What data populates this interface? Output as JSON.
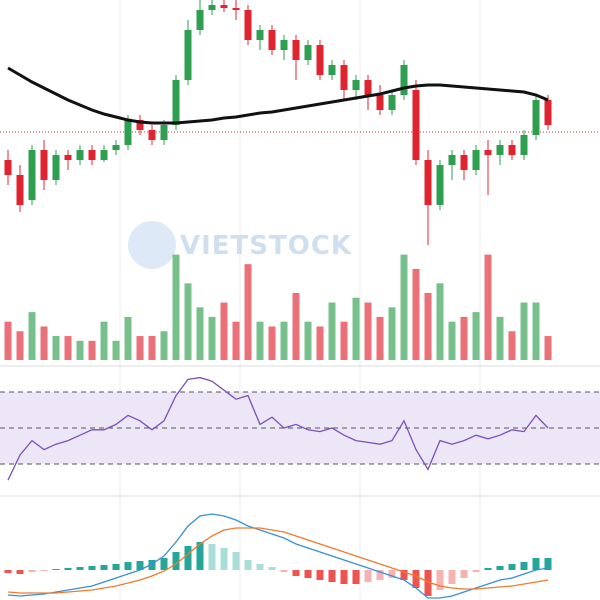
{
  "watermark": "VIETSTOCK",
  "chart_data": [
    {
      "type": "candlestick",
      "up_color": "#2e9e4f",
      "down_color": "#e0242f",
      "ylim": [
        -20,
        230
      ],
      "reference": 98,
      "open": [
        70,
        55,
        30,
        80,
        50,
        75,
        70,
        80,
        70,
        80,
        85,
        110,
        100,
        90,
        105,
        150,
        200,
        220,
        225,
        222,
        220,
        190,
        200,
        180,
        190,
        170,
        185,
        155,
        165,
        140,
        150,
        135,
        120,
        135,
        140,
        70,
        25,
        65,
        75,
        60,
        80,
        75,
        85,
        75,
        95,
        130
      ],
      "close": [
        55,
        25,
        80,
        50,
        75,
        70,
        80,
        70,
        80,
        85,
        110,
        100,
        90,
        105,
        150,
        200,
        220,
        225,
        222,
        220,
        190,
        200,
        180,
        190,
        170,
        185,
        155,
        165,
        140,
        150,
        135,
        120,
        135,
        165,
        70,
        25,
        65,
        75,
        60,
        80,
        75,
        85,
        75,
        95,
        130,
        105
      ],
      "high": [
        80,
        65,
        85,
        90,
        80,
        80,
        85,
        85,
        85,
        90,
        115,
        115,
        105,
        110,
        155,
        210,
        230,
        230,
        230,
        230,
        225,
        205,
        205,
        195,
        195,
        190,
        190,
        170,
        170,
        155,
        155,
        145,
        140,
        170,
        150,
        80,
        70,
        80,
        80,
        85,
        90,
        90,
        90,
        100,
        135,
        135
      ],
      "low": [
        45,
        18,
        25,
        40,
        45,
        60,
        65,
        65,
        68,
        75,
        80,
        95,
        85,
        85,
        100,
        145,
        195,
        215,
        218,
        210,
        185,
        180,
        175,
        170,
        150,
        165,
        150,
        150,
        130,
        130,
        120,
        115,
        115,
        130,
        65,
        -15,
        20,
        50,
        50,
        55,
        35,
        65,
        70,
        70,
        90,
        100
      ],
      "ma": {
        "color": "#111111",
        "values": [
          162,
          155,
          148,
          142,
          136,
          130,
          125,
          120,
          116,
          113,
          110,
          108,
          107,
          107,
          107,
          108,
          109,
          110,
          112,
          113,
          115,
          117,
          118,
          120,
          122,
          124,
          126,
          128,
          130,
          132,
          134,
          136,
          139,
          142,
          144,
          145,
          145,
          144,
          143,
          142,
          141,
          140,
          139,
          138,
          135,
          130
        ]
      }
    },
    {
      "type": "bar",
      "ylim": [
        0,
        120
      ],
      "values": [
        40,
        30,
        50,
        35,
        25,
        25,
        20,
        20,
        40,
        20,
        45,
        25,
        25,
        30,
        110,
        80,
        55,
        45,
        60,
        40,
        100,
        40,
        35,
        40,
        70,
        40,
        35,
        60,
        40,
        65,
        60,
        45,
        55,
        110,
        95,
        70,
        80,
        40,
        45,
        50,
        110,
        45,
        30,
        60,
        60,
        25
      ]
    },
    {
      "type": "line",
      "color": "#7b52b9",
      "band_color": "#ece6f7",
      "ylim": [
        10,
        80
      ],
      "levels": [
        30,
        50,
        70
      ],
      "values": [
        21,
        35,
        43,
        38,
        41,
        43,
        46,
        49,
        49,
        52,
        57,
        54,
        49,
        54,
        68,
        77,
        78,
        76,
        71,
        66,
        68,
        52,
        56,
        50,
        52,
        49,
        48,
        50,
        46,
        43,
        42,
        41,
        43,
        54,
        38,
        27,
        43,
        41,
        43,
        46,
        44,
        46,
        49,
        48,
        57,
        50
      ]
    },
    {
      "type": "macd",
      "ylim": [
        -30,
        70
      ],
      "macd_color": "#3a8fd9",
      "signal_color": "#f07b2c",
      "histogram": [
        -3,
        -4,
        -2,
        -1,
        1,
        2,
        3,
        4,
        5,
        6,
        8,
        9,
        10,
        12,
        18,
        24,
        28,
        26,
        22,
        18,
        10,
        6,
        3,
        -2,
        -6,
        -8,
        -10,
        -12,
        -14,
        -14,
        -12,
        -10,
        -8,
        -10,
        -18,
        -26,
        -20,
        -14,
        -8,
        -2,
        2,
        4,
        6,
        8,
        12,
        12
      ],
      "macd": [
        -25,
        -26,
        -25,
        -24,
        -22,
        -20,
        -18,
        -16,
        -12,
        -8,
        -4,
        0,
        6,
        14,
        28,
        44,
        54,
        56,
        54,
        50,
        44,
        40,
        36,
        32,
        26,
        22,
        18,
        14,
        10,
        6,
        2,
        -2,
        -6,
        -10,
        -18,
        -28,
        -28,
        -26,
        -22,
        -18,
        -14,
        -10,
        -8,
        -4,
        0,
        2
      ],
      "signal": [
        -22,
        -23,
        -23,
        -23,
        -23,
        -22,
        -21,
        -20,
        -18,
        -16,
        -13,
        -10,
        -6,
        -1,
        6,
        16,
        26,
        34,
        40,
        42,
        42,
        42,
        40,
        38,
        34,
        30,
        26,
        22,
        18,
        14,
        10,
        6,
        2,
        -2,
        -6,
        -12,
        -16,
        -18,
        -19,
        -19,
        -18,
        -17,
        -16,
        -14,
        -12,
        -10
      ]
    }
  ]
}
